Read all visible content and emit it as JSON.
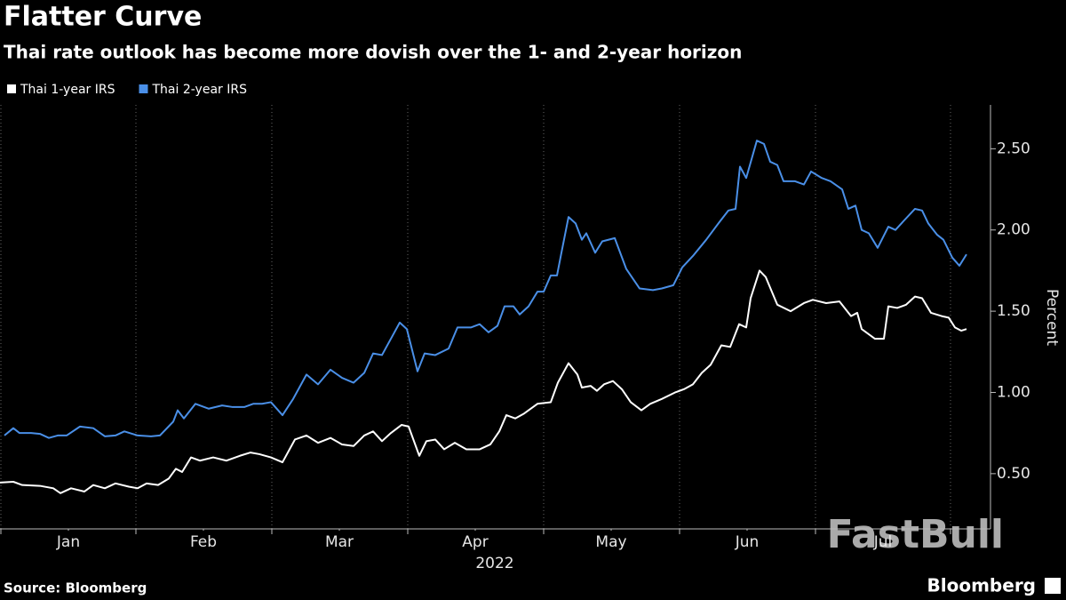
{
  "chart_data": {
    "type": "line",
    "title": "Flatter Curve",
    "subtitle": "Thai rate outlook has become more dovish over the 1- and 2-year horizon",
    "y_label": "Percent",
    "x_label": "2022",
    "source": "Source: Bloomberg",
    "brand": "Bloomberg",
    "watermark": "FastBull",
    "grid": "x",
    "xlim": [
      0,
      223
    ],
    "xticks": [
      {
        "value": 15.4,
        "label": "Jan"
      },
      {
        "value": 45.8,
        "label": "Feb"
      },
      {
        "value": 76.4,
        "label": "Mar"
      },
      {
        "value": 107,
        "label": "Apr"
      },
      {
        "value": 137.6,
        "label": "May"
      },
      {
        "value": 168.2,
        "label": "Jun"
      },
      {
        "value": 198.8,
        "label": "Jul"
      }
    ],
    "ylim": [
      0.16,
      2.77
    ],
    "yticks": [
      {
        "value": 0.5,
        "label": "0.50"
      },
      {
        "value": 1,
        "label": "1.00"
      },
      {
        "value": 1.5,
        "label": "1.50"
      },
      {
        "value": 2,
        "label": "2.00"
      },
      {
        "value": 2.5,
        "label": "2.50"
      }
    ],
    "series": [
      {
        "name": "Thai 1-year IRS",
        "color": "#ffffff",
        "x": [
          0,
          3,
          5,
          9,
          12,
          13.6,
          16,
          19,
          21,
          23.6,
          26,
          29,
          31,
          33,
          35.6,
          38,
          39.6,
          41,
          43,
          45,
          48,
          51,
          54,
          56.4,
          58.4,
          61,
          63.6,
          66.4,
          69,
          71.6,
          74.4,
          77,
          79.6,
          82,
          84,
          86,
          88,
          90.4,
          92,
          94.4,
          96,
          98,
          100,
          102.4,
          105,
          108,
          110.4,
          112.4,
          114,
          116,
          118,
          121,
          124,
          125.6,
          128,
          130,
          131,
          133,
          134.4,
          136,
          138,
          140,
          142,
          144.4,
          146.4,
          149,
          152,
          154,
          156,
          158,
          160,
          162.4,
          164.4,
          166.4,
          168,
          169,
          171,
          172.4,
          175,
          178,
          181,
          183,
          186,
          189,
          191.6,
          193,
          194,
          197,
          199,
          200,
          202,
          204,
          206,
          207.6,
          209.6,
          212,
          213.6,
          215,
          216.4,
          217.6
        ],
        "values": [
          0.445,
          0.45,
          0.43,
          0.425,
          0.41,
          0.38,
          0.41,
          0.39,
          0.43,
          0.41,
          0.44,
          0.42,
          0.41,
          0.44,
          0.43,
          0.47,
          0.53,
          0.51,
          0.6,
          0.58,
          0.6,
          0.58,
          0.61,
          0.63,
          0.62,
          0.6,
          0.57,
          0.71,
          0.735,
          0.69,
          0.72,
          0.68,
          0.67,
          0.735,
          0.76,
          0.7,
          0.75,
          0.8,
          0.79,
          0.61,
          0.7,
          0.71,
          0.65,
          0.69,
          0.65,
          0.65,
          0.68,
          0.76,
          0.86,
          0.84,
          0.87,
          0.93,
          0.94,
          1.06,
          1.18,
          1.11,
          1.03,
          1.04,
          1.01,
          1.05,
          1.07,
          1.02,
          0.94,
          0.89,
          0.93,
          0.96,
          1.0,
          1.02,
          1.05,
          1.12,
          1.17,
          1.29,
          1.28,
          1.42,
          1.4,
          1.58,
          1.75,
          1.71,
          1.54,
          1.5,
          1.55,
          1.57,
          1.55,
          1.56,
          1.47,
          1.49,
          1.39,
          1.33,
          1.33,
          1.53,
          1.52,
          1.54,
          1.59,
          1.58,
          1.49,
          1.47,
          1.46,
          1.4,
          1.38,
          1.39
        ]
      },
      {
        "name": "Thai 2-year IRS",
        "color": "#4a8fe7",
        "x": [
          1,
          3,
          4.4,
          7,
          9,
          11,
          13,
          15,
          18,
          21,
          23.6,
          26,
          28,
          31,
          34,
          36,
          39,
          40,
          41.4,
          44,
          47,
          50,
          52.4,
          55,
          57,
          59,
          61,
          63.6,
          66,
          69,
          71.6,
          74.4,
          77,
          79.6,
          82,
          84,
          86,
          88,
          90,
          91.6,
          94,
          95.6,
          98,
          101,
          103,
          106,
          108,
          110,
          112,
          113.6,
          115.6,
          117,
          119,
          121,
          122.4,
          124,
          125.4,
          126.4,
          128,
          129.6,
          131,
          132,
          134,
          135.6,
          138.4,
          141,
          144,
          147,
          149,
          151.6,
          153.6,
          156,
          159,
          162,
          164,
          165.6,
          166.6,
          168,
          170.4,
          172,
          173.4,
          175,
          176.4,
          179,
          181,
          182.6,
          185,
          187,
          189.6,
          191,
          192.6,
          194,
          195.6,
          197.6,
          200,
          201.6,
          203.6,
          206,
          207.6,
          209,
          211,
          212.4,
          214.4,
          216,
          217.6
        ],
        "values": [
          0.735,
          0.78,
          0.75,
          0.75,
          0.745,
          0.72,
          0.735,
          0.735,
          0.79,
          0.78,
          0.73,
          0.735,
          0.76,
          0.735,
          0.73,
          0.735,
          0.82,
          0.89,
          0.84,
          0.93,
          0.9,
          0.92,
          0.91,
          0.91,
          0.93,
          0.93,
          0.94,
          0.86,
          0.96,
          1.11,
          1.05,
          1.14,
          1.09,
          1.06,
          1.12,
          1.24,
          1.23,
          1.33,
          1.43,
          1.39,
          1.13,
          1.24,
          1.23,
          1.27,
          1.4,
          1.4,
          1.42,
          1.37,
          1.41,
          1.53,
          1.53,
          1.48,
          1.53,
          1.62,
          1.62,
          1.72,
          1.72,
          1.86,
          2.08,
          2.04,
          1.94,
          1.98,
          1.86,
          1.93,
          1.95,
          1.76,
          1.64,
          1.63,
          1.64,
          1.66,
          1.77,
          1.84,
          1.94,
          2.05,
          2.12,
          2.13,
          2.39,
          2.32,
          2.55,
          2.53,
          2.42,
          2.4,
          2.3,
          2.3,
          2.28,
          2.36,
          2.32,
          2.3,
          2.25,
          2.13,
          2.15,
          2.0,
          1.98,
          1.89,
          2.02,
          2.0,
          2.06,
          2.13,
          2.12,
          2.04,
          1.97,
          1.94,
          1.83,
          1.78,
          1.85
        ]
      }
    ]
  }
}
